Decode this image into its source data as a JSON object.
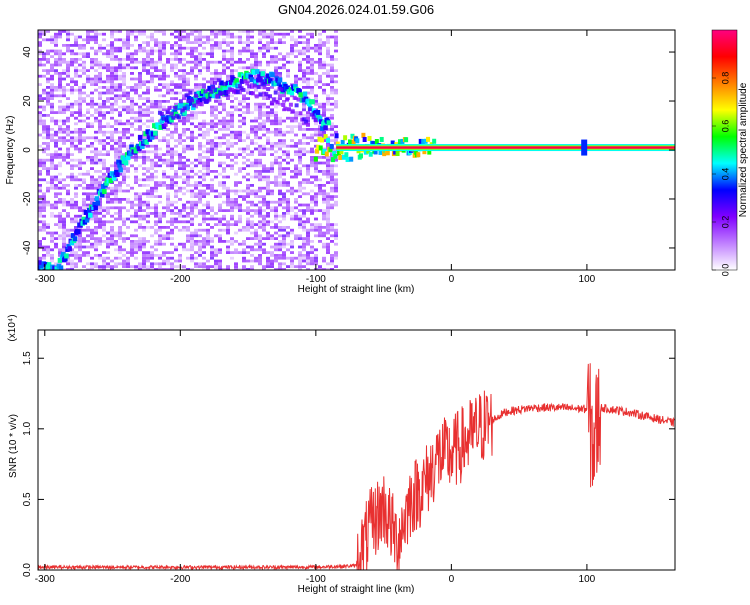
{
  "title": "GN04.2026.024.01.59.G06",
  "chart_data": [
    {
      "type": "heatmap",
      "xlabel": "Height of straight line (km)",
      "ylabel": "Frequency (Hz)",
      "xlim": [
        -305,
        165
      ],
      "ylim": [
        -49,
        49
      ],
      "x_ticks": [
        -300,
        -200,
        -100,
        0,
        100
      ],
      "y_ticks": [
        -40,
        -20,
        0,
        20,
        40
      ],
      "colorbar": {
        "label": "Normalized spectral amplitude",
        "range": [
          0,
          1
        ],
        "ticks": [
          "0.0",
          "0.2",
          "0.4",
          "0.6",
          "0.8"
        ],
        "tick_values": [
          0,
          0.2,
          0.4,
          0.6,
          0.8
        ],
        "colors": [
          "#ffffff",
          "#c080ff",
          "#8000ff",
          "#0000ff",
          "#00ffff",
          "#00ff00",
          "#ffff00",
          "#ff8000",
          "#ff0000",
          "#ff0080"
        ]
      },
      "features": {
        "noise_region_x": [
          -305,
          -85
        ],
        "curved_trace": [
          [
            -290,
            -48
          ],
          [
            -270,
            -28
          ],
          [
            -250,
            -10
          ],
          [
            -230,
            3
          ],
          [
            -210,
            13
          ],
          [
            -190,
            20
          ],
          [
            -170,
            25
          ],
          [
            -150,
            30
          ],
          [
            -135,
            29
          ],
          [
            -120,
            25
          ],
          [
            -105,
            20
          ],
          [
            -95,
            10
          ]
        ],
        "carrier_start_x": -85,
        "carrier_freq": 1
      }
    },
    {
      "type": "line",
      "xlabel": "Height of straight line (km)",
      "ylabel": "SNR (10 * v/v)",
      "multiplier_label": "(x10⁴)",
      "xlim": [
        -305,
        165
      ],
      "ylim": [
        0,
        1.7
      ],
      "x_ticks": [
        -300,
        -200,
        -100,
        0,
        100
      ],
      "y_ticks": [
        "0.0",
        "0.5",
        "1.0",
        "1.5"
      ],
      "y_tick_values": [
        0,
        0.5,
        1.0,
        1.5
      ],
      "series_color": "#e83030",
      "envelope": [
        [
          -305,
          0.02
        ],
        [
          -100,
          0.02
        ],
        [
          -70,
          0.03
        ],
        [
          -60,
          0.3
        ],
        [
          -50,
          0.45
        ],
        [
          -40,
          0.2
        ],
        [
          -30,
          0.5
        ],
        [
          -20,
          0.6
        ],
        [
          -10,
          0.8
        ],
        [
          0,
          0.82
        ],
        [
          20,
          1.0
        ],
        [
          40,
          1.12
        ],
        [
          60,
          1.15
        ],
        [
          80,
          1.15
        ],
        [
          100,
          1.14
        ],
        [
          105,
          0.9
        ],
        [
          110,
          1.15
        ],
        [
          130,
          1.12
        ],
        [
          165,
          1.04
        ]
      ]
    }
  ]
}
